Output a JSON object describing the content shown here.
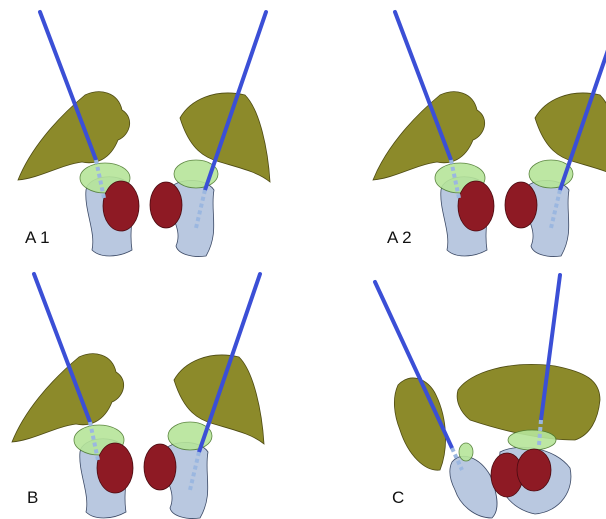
{
  "panels": [
    {
      "label": "A 1"
    },
    {
      "label": "A 2"
    },
    {
      "label": "B"
    },
    {
      "label": "C"
    }
  ]
}
